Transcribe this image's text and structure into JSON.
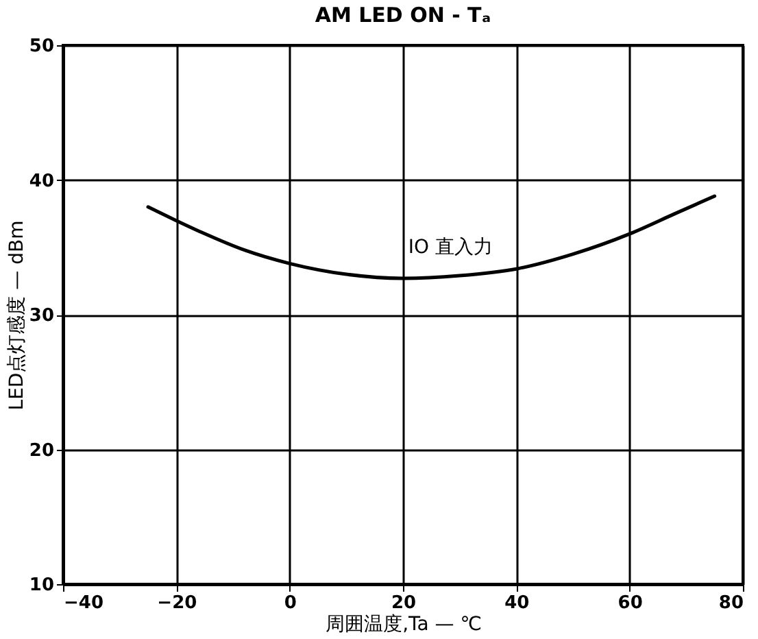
{
  "chart_data": {
    "type": "line",
    "title": "AM LED ON - Tₐ",
    "xlabel": "周囲温度,Ta — ℃",
    "ylabel": "LED点灯感度 — dBm",
    "x": [
      -25,
      -16,
      -8,
      0,
      10,
      20,
      30,
      40,
      50,
      60,
      68,
      75
    ],
    "series": [
      {
        "color": "#000000",
        "values": [
          38.0,
          36.2,
          34.8,
          33.8,
          33.0,
          32.7,
          32.9,
          33.4,
          34.5,
          36.0,
          37.5,
          38.8
        ]
      }
    ],
    "xlim": [
      -40,
      80
    ],
    "xticks": [
      -40,
      -20,
      0,
      20,
      40,
      60,
      80
    ],
    "ylim": [
      10,
      50
    ],
    "yticks": [
      10,
      20,
      30,
      40,
      50
    ],
    "grid": true,
    "marker": "none",
    "line_style": "solid",
    "annotations": [
      "IO 直入力"
    ]
  }
}
